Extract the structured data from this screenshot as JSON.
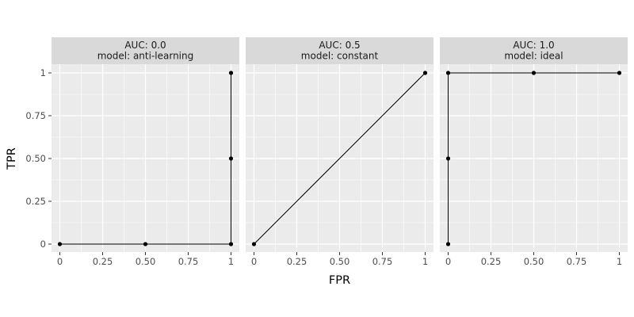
{
  "chart_data": {
    "type": "line",
    "xlabel": "FPR",
    "ylabel": "TPR",
    "xlim": [
      0,
      1
    ],
    "ylim": [
      0,
      1
    ],
    "x_ticks": [
      {
        "value": 0,
        "label": "0"
      },
      {
        "value": 0.25,
        "label": "0.25"
      },
      {
        "value": 0.5,
        "label": "0.50"
      },
      {
        "value": 0.75,
        "label": "0.75"
      },
      {
        "value": 1,
        "label": "1"
      }
    ],
    "y_ticks": [
      {
        "value": 0,
        "label": "0"
      },
      {
        "value": 0.25,
        "label": "0.25"
      },
      {
        "value": 0.5,
        "label": "0.50"
      },
      {
        "value": 0.75,
        "label": "0.75"
      },
      {
        "value": 1,
        "label": "1"
      }
    ],
    "grid": true,
    "facets": [
      {
        "strip": [
          "AUC: 0.0",
          "model: anti-learning"
        ],
        "points": [
          {
            "x": 0,
            "y": 0
          },
          {
            "x": 0.5,
            "y": 0
          },
          {
            "x": 1,
            "y": 0
          },
          {
            "x": 1,
            "y": 0.5
          },
          {
            "x": 1,
            "y": 1
          }
        ]
      },
      {
        "strip": [
          "AUC: 0.5",
          "model: constant"
        ],
        "points": [
          {
            "x": 0,
            "y": 0
          },
          {
            "x": 1,
            "y": 1
          }
        ]
      },
      {
        "strip": [
          "AUC: 1.0",
          "model: ideal"
        ],
        "points": [
          {
            "x": 0,
            "y": 0
          },
          {
            "x": 0,
            "y": 0.5
          },
          {
            "x": 0,
            "y": 1
          },
          {
            "x": 0.5,
            "y": 1
          },
          {
            "x": 1,
            "y": 1
          }
        ]
      }
    ],
    "colors": {
      "panel_background": "#ebebeb",
      "strip_background": "#d9d9d9",
      "grid": "#ffffff",
      "line": "#000000",
      "point": "#000000"
    }
  }
}
